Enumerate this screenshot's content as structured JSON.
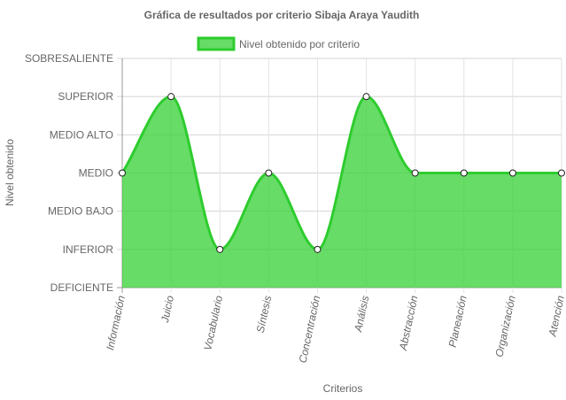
{
  "chart_data": {
    "type": "area",
    "title": "Gráfica de resultados por criterio Sibaja Araya Yaudith",
    "xlabel": "Criterios",
    "ylabel": "Nivel obtenido",
    "y_levels": [
      "DEFICIENTE",
      "INFERIOR",
      "MEDIO BAJO",
      "MEDIO",
      "MEDIO ALTO",
      "SUPERIOR",
      "SOBRESALIENTE"
    ],
    "categories": [
      "Información",
      "Juicio",
      "Vocabulario",
      "Síntesis",
      "Concentración",
      "Análisis",
      "Abstracción",
      "Planeación",
      "Organización",
      "Atención"
    ],
    "series": [
      {
        "name": "Nivel obtenido por criterio",
        "values": [
          "MEDIO",
          "SUPERIOR",
          "INFERIOR",
          "MEDIO",
          "INFERIOR",
          "SUPERIOR",
          "MEDIO",
          "MEDIO",
          "MEDIO",
          "MEDIO"
        ],
        "color": "#2ecc2e",
        "fill": "rgba(60, 210, 60, 0.78)"
      }
    ],
    "legend_position": "top",
    "grid": true
  }
}
